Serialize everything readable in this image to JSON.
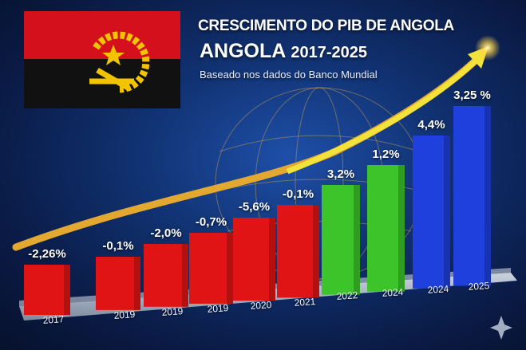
{
  "header": {
    "title_line1": "CRESCIMENTO DO PIB DE ANGOLA",
    "title_line2_word": "ANGOLA",
    "title_line2_years": "2017-2025",
    "subtitle": "Baseado nos dados do Banco Mundial"
  },
  "colors": {
    "negative": "#e01414",
    "positive_green": "#3cc42a",
    "positive_blue": "#1f40dc",
    "arrow": "#f2e23a",
    "flag_red": "#d4101c",
    "flag_black": "#111111",
    "emblem": "#f2c400"
  },
  "chart_data": {
    "type": "bar",
    "title": "CRESCIMENTO DO PIB DE ANGOLA",
    "categories": [
      "2017",
      "2019",
      "2019",
      "2019",
      "2020",
      "2021",
      "2022",
      "2024",
      "2024",
      "2025"
    ],
    "values": [
      -2.26,
      -0.1,
      -2.0,
      -0.7,
      -5.6,
      -0.1,
      3.2,
      1.2,
      4.4,
      3.25
    ],
    "data_labels": [
      "-2,26%",
      "-0,1%",
      "-2,0%",
      "-0,7%",
      "-5,6%",
      "-0,1%",
      "3,2%",
      "1,2%",
      "4,4%",
      "3,25 %"
    ],
    "bar_colors": [
      "red",
      "red",
      "red",
      "red",
      "red",
      "red",
      "green",
      "green",
      "blue",
      "blue"
    ],
    "trend_arrow": "rising",
    "grid": false,
    "legend": "none"
  }
}
